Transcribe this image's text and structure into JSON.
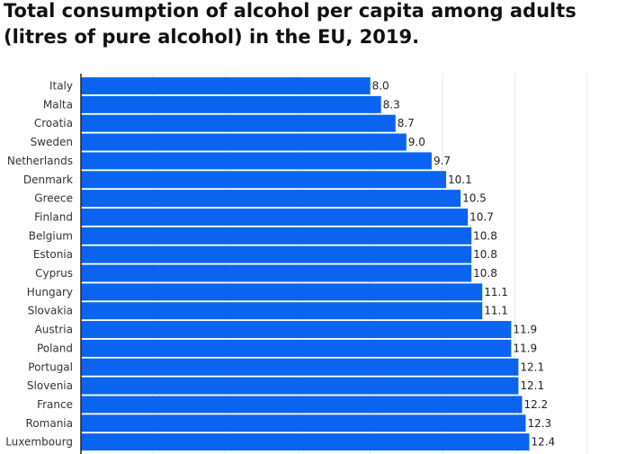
{
  "chart_data": {
    "type": "bar",
    "orientation": "horizontal",
    "title": "Total consumption of alcohol per capita among adults (litres of pure alcohol) in the EU, 2019.",
    "categories": [
      "Italy",
      "Malta",
      "Croatia",
      "Sweden",
      "Netherlands",
      "Denmark",
      "Greece",
      "Finland",
      "Belgium",
      "Estonia",
      "Cyprus",
      "Hungary",
      "Slovakia",
      "Austria",
      "Poland",
      "Portugal",
      "Slovenia",
      "France",
      "Romania",
      "Luxembourg"
    ],
    "values": [
      8.0,
      8.3,
      8.7,
      9.0,
      9.7,
      10.1,
      10.5,
      10.7,
      10.8,
      10.8,
      10.8,
      11.1,
      11.1,
      11.9,
      11.9,
      12.1,
      12.1,
      12.2,
      12.3,
      12.4
    ],
    "value_labels": [
      "8.0",
      "8.3",
      "8.7",
      "9.0",
      "9.7",
      "10.1",
      "10.5",
      "10.7",
      "10.8",
      "10.8",
      "10.8",
      "11.1",
      "11.1",
      "11.9",
      "11.9",
      "12.1",
      "12.1",
      "12.2",
      "12.3",
      "12.4"
    ],
    "xlim": [
      0,
      14
    ],
    "grid": true,
    "legend": "none",
    "bar_color": "#0a64f0",
    "grid_color": "#e6e6e6",
    "axis_color": "#222222"
  }
}
